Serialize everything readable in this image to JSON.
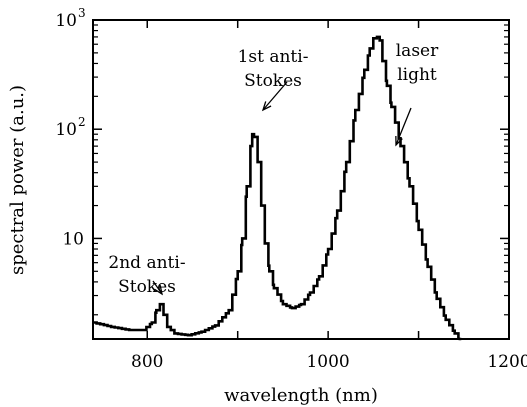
{
  "chart_data": {
    "type": "line",
    "title": "",
    "xlabel": "wavelength (nm)",
    "ylabel": "spectral power (a.u.)",
    "xlim": [
      740,
      1200
    ],
    "ylim": [
      1.2,
      1000
    ],
    "yscale": "log",
    "grid": false,
    "legend": "none",
    "x_ticks": [
      {
        "value": 800,
        "label": "800"
      },
      {
        "value": 900,
        "label": ""
      },
      {
        "value": 1000,
        "label": "1000"
      },
      {
        "value": 1100,
        "label": ""
      },
      {
        "value": 1200,
        "label": "1200"
      }
    ],
    "y_ticks": [
      {
        "value": 10,
        "label": "10"
      },
      {
        "value": 100,
        "label": "10",
        "exp": "2"
      },
      {
        "value": 1000,
        "label": "10",
        "exp": "3"
      }
    ],
    "series": [
      {
        "color": "#000000",
        "x": [
          740,
          760,
          780,
          795,
          805,
          810,
          814,
          818,
          822,
          830,
          845,
          860,
          875,
          890,
          900,
          905,
          910,
          914,
          916,
          918,
          922,
          926,
          930,
          935,
          940,
          950,
          960,
          970,
          980,
          990,
          1000,
          1010,
          1020,
          1030,
          1040,
          1046,
          1050,
          1054,
          1057,
          1060,
          1065,
          1070,
          1080,
          1090,
          1100,
          1110,
          1120,
          1130,
          1140,
          1145
        ],
        "y": [
          1.7,
          1.55,
          1.45,
          1.45,
          1.7,
          2.2,
          2.5,
          2.0,
          1.55,
          1.35,
          1.3,
          1.4,
          1.6,
          2.2,
          5,
          10,
          30,
          70,
          90,
          85,
          50,
          20,
          9,
          5,
          3.5,
          2.5,
          2.3,
          2.5,
          3.2,
          4.5,
          8,
          18,
          50,
          150,
          350,
          550,
          680,
          700,
          650,
          420,
          250,
          160,
          70,
          30,
          12,
          5.5,
          2.8,
          1.8,
          1.35,
          1.2
        ]
      }
    ],
    "annotations": [
      {
        "lines": [
          "2nd anti-",
          "Stokes"
        ],
        "x": 812,
        "y": 2.6
      },
      {
        "lines": [
          "1st anti-",
          "Stokes"
        ],
        "x": 915,
        "y": 95
      },
      {
        "lines": [
          "laser",
          "light"
        ],
        "x": 1085,
        "y": 100
      }
    ]
  }
}
